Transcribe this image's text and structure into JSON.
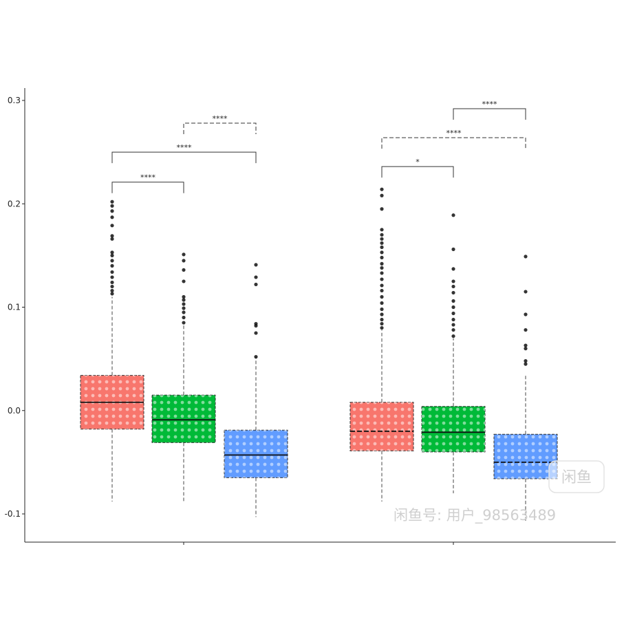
{
  "chart_data": {
    "type": "boxplot",
    "title": "",
    "xlabel": "",
    "ylabel": "",
    "ylim": [
      -0.128,
      0.31
    ],
    "yticks": [
      0.3,
      0.2,
      0.1,
      0.0,
      -0.1
    ],
    "ytick_labels": [
      "0.3",
      "0.2",
      "0.1",
      "0.0",
      "-0.1"
    ],
    "grid": false,
    "legend": "none",
    "series_colors": [
      "#f8766d",
      "#00ba38",
      "#619cff"
    ],
    "groups": [
      {
        "boxes": [
          {
            "color": "#f8766d",
            "whisker_low": -0.088,
            "q1": -0.018,
            "median": 0.008,
            "q3": 0.034,
            "whisker_high": 0.11,
            "median_style": "solid",
            "outliers": [
              0.113,
              0.116,
              0.12,
              0.124,
              0.129,
              0.134,
              0.14,
              0.145,
              0.15,
              0.153,
              0.166,
              0.169,
              0.179,
              0.187,
              0.193,
              0.198,
              0.202
            ]
          },
          {
            "color": "#00ba38",
            "whisker_low": -0.088,
            "q1": -0.031,
            "median": -0.009,
            "q3": 0.015,
            "whisker_high": 0.083,
            "median_style": "solid",
            "outliers": [
              0.085,
              0.09,
              0.095,
              0.099,
              0.103,
              0.107,
              0.11,
              0.125,
              0.136,
              0.145,
              0.151
            ]
          },
          {
            "color": "#619cff",
            "whisker_low": -0.103,
            "q1": -0.065,
            "median": -0.043,
            "q3": -0.019,
            "whisker_high": 0.052,
            "median_style": "solid",
            "outliers": [
              0.052,
              0.075,
              0.082,
              0.084,
              0.122,
              0.129,
              0.141
            ]
          }
        ],
        "comparisons": [
          {
            "from": 0,
            "to": 1,
            "label": "****",
            "y": 0.221,
            "style": "solid"
          },
          {
            "from": 0,
            "to": 2,
            "label": "****",
            "y": 0.25,
            "style": "solid"
          },
          {
            "from": 1,
            "to": 2,
            "label": "****",
            "y": 0.278,
            "style": "dashed"
          }
        ]
      },
      {
        "boxes": [
          {
            "color": "#f8766d",
            "whisker_low": -0.088,
            "q1": -0.039,
            "median": -0.02,
            "q3": 0.008,
            "whisker_high": 0.078,
            "median_style": "dashed",
            "outliers": [
              0.08,
              0.084,
              0.088,
              0.093,
              0.098,
              0.104,
              0.11,
              0.116,
              0.121,
              0.127,
              0.133,
              0.138,
              0.142,
              0.148,
              0.153,
              0.158,
              0.162,
              0.166,
              0.17,
              0.175,
              0.195,
              0.208,
              0.214
            ]
          },
          {
            "color": "#00ba38",
            "whisker_low": -0.08,
            "q1": -0.04,
            "median": -0.021,
            "q3": 0.004,
            "whisker_high": 0.07,
            "median_style": "solid",
            "outliers": [
              0.072,
              0.078,
              0.083,
              0.088,
              0.094,
              0.1,
              0.106,
              0.114,
              0.12,
              0.125,
              0.137,
              0.156,
              0.189
            ]
          },
          {
            "color": "#619cff",
            "whisker_low": -0.107,
            "q1": -0.066,
            "median": -0.05,
            "q3": -0.023,
            "whisker_high": 0.034,
            "median_style": "dashed",
            "outliers": [
              0.045,
              0.048,
              0.06,
              0.063,
              0.078,
              0.093,
              0.115,
              0.149
            ]
          }
        ],
        "comparisons": [
          {
            "from": 0,
            "to": 1,
            "label": "*",
            "y": 0.236,
            "style": "solid"
          },
          {
            "from": 0,
            "to": 2,
            "label": "****",
            "y": 0.264,
            "style": "dashed"
          },
          {
            "from": 1,
            "to": 2,
            "label": "****",
            "y": 0.292,
            "style": "solid"
          }
        ]
      }
    ]
  },
  "watermark": {
    "badge_text": "闲鱼",
    "text": "闲鱼号: 用户_98563489"
  }
}
